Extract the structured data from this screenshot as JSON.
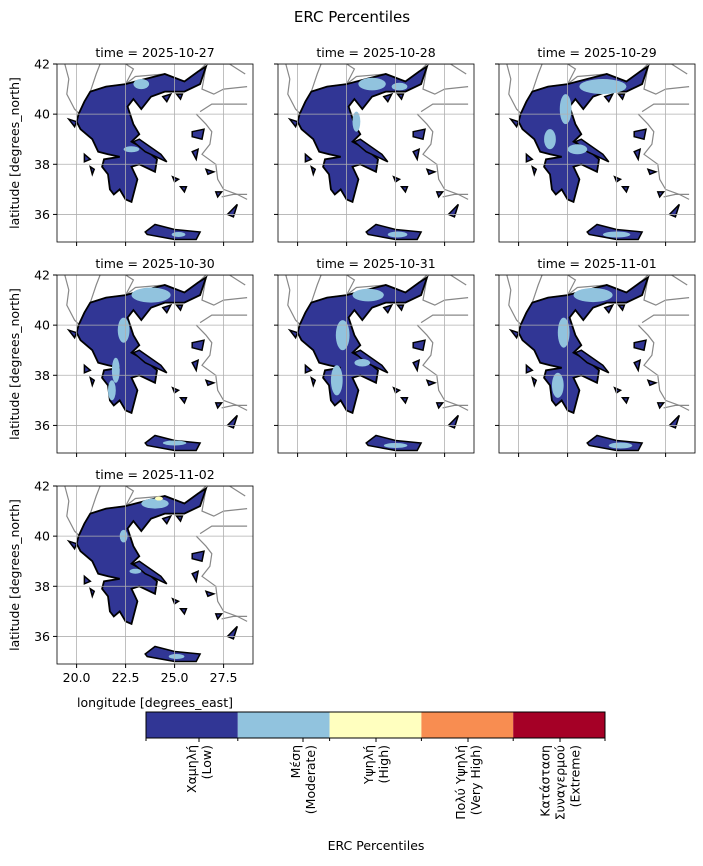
{
  "figure": {
    "title": "ERC Percentiles",
    "xlabel": "longitude [degrees_east]",
    "ylabel": "latitude [degrees_north]"
  },
  "chart_data": {
    "type": "map-facets",
    "panels": [
      {
        "title": "time = 2025-10-27"
      },
      {
        "title": "time = 2025-10-28"
      },
      {
        "title": "time = 2025-10-29"
      },
      {
        "title": "time = 2025-10-30"
      },
      {
        "title": "time = 2025-10-31"
      },
      {
        "title": "time = 2025-11-01"
      },
      {
        "title": "time = 2025-11-02"
      }
    ],
    "xlim": [
      19,
      29
    ],
    "ylim": [
      34.9,
      42
    ],
    "xticks": [
      "20.0",
      "22.5",
      "25.0",
      "27.5"
    ],
    "yticks": [
      "36",
      "38",
      "40",
      "42"
    ],
    "grid": true
  },
  "colorbar": {
    "label": "ERC Percentiles",
    "classes": [
      {
        "label": "Χαμηλή\n(Low)",
        "color": "#313695"
      },
      {
        "label": "Μέση\n(Moderate)",
        "color": "#91c3de"
      },
      {
        "label": "Υψηλή\n(High)",
        "color": "#ffffbf"
      },
      {
        "label": "Πολύ Υψηλή\n(Very High)",
        "color": "#f88d51"
      },
      {
        "label": "Κατάσταση\nΣυναγερμού\n(Extreme)",
        "color": "#a50026"
      }
    ]
  }
}
